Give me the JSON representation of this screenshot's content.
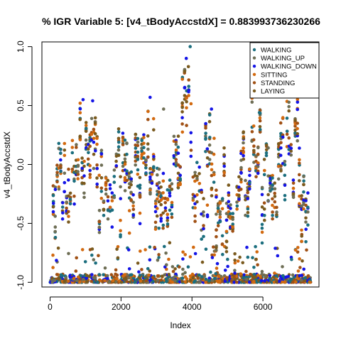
{
  "chart_data": {
    "type": "scatter",
    "title": "% IGR Variable 5: [v4_tBodyAccstdX] = 0.883993736230266",
    "xlabel": "Index",
    "ylabel": "v4_tBodyAccstdX",
    "xlim": [
      -230,
      7580
    ],
    "ylim": [
      -1.04,
      1.04
    ],
    "xticks": [
      0,
      2000,
      4000,
      6000
    ],
    "xtick_labels": [
      "0",
      "2000",
      "4000",
      "6000"
    ],
    "yticks": [
      -1.0,
      -0.5,
      0.0,
      0.5,
      1.0
    ],
    "ytick_labels": [
      "-1.0",
      "-0.5",
      "0.0",
      "0.5",
      "1.0"
    ],
    "grid": false,
    "legend_position": "top-right",
    "series": [
      {
        "name": "WALKING",
        "color": "#1b6e7e"
      },
      {
        "name": "WALKING_UP",
        "color": "#6e6e55"
      },
      {
        "name": "WALKING_DOWN",
        "color": "#1414e6"
      },
      {
        "name": "SITTING",
        "color": "#d2690f"
      },
      {
        "name": "STANDING",
        "color": "#a05014"
      },
      {
        "name": "LAYING",
        "color": "#7a5a1e"
      }
    ],
    "segments": [
      {
        "x": [
          60,
          330
        ],
        "low": -0.42,
        "high": 0.12
      },
      {
        "x": [
          330,
          600
        ],
        "low": -0.48,
        "high": 0.08
      },
      {
        "x": [
          600,
          820
        ],
        "low": -0.3,
        "high": 0.22
      },
      {
        "x": [
          820,
          1050
        ],
        "low": -0.12,
        "high": 0.5
      },
      {
        "x": [
          1050,
          1300
        ],
        "low": -0.28,
        "high": 0.5
      },
      {
        "x": [
          1300,
          1600
        ],
        "low": -0.38,
        "high": 0.15
      },
      {
        "x": [
          1600,
          1900
        ],
        "low": -0.48,
        "high": 0.05
      },
      {
        "x": [
          1900,
          2200
        ],
        "low": -0.5,
        "high": 0.2
      },
      {
        "x": [
          2200,
          2500
        ],
        "low": -0.42,
        "high": 0.15
      },
      {
        "x": [
          2500,
          2850
        ],
        "low": -0.28,
        "high": 0.5
      },
      {
        "x": [
          2850,
          3100
        ],
        "low": -0.58,
        "high": 0.25
      },
      {
        "x": [
          3100,
          3400
        ],
        "low": -0.42,
        "high": -0.28
      },
      {
        "x": [
          3400,
          3700
        ],
        "low": -0.35,
        "high": 0.28
      },
      {
        "x": [
          3700,
          4000
        ],
        "low": -0.15,
        "high": 0.85
      },
      {
        "x": [
          4000,
          4350
        ],
        "low": -0.45,
        "high": 0.2
      },
      {
        "x": [
          4350,
          4650
        ],
        "low": -0.2,
        "high": 0.45
      },
      {
        "x": [
          4650,
          5000
        ],
        "low": -0.58,
        "high": 0.1
      },
      {
        "x": [
          5000,
          5300
        ],
        "low": -0.75,
        "high": -0.3
      },
      {
        "x": [
          5300,
          5600
        ],
        "low": -0.72,
        "high": 0.25
      },
      {
        "x": [
          5600,
          5950
        ],
        "low": -0.48,
        "high": 0.38
      },
      {
        "x": [
          5950,
          6300
        ],
        "low": -0.42,
        "high": 0.3
      },
      {
        "x": [
          6300,
          6650
        ],
        "low": -0.35,
        "high": 0.2
      },
      {
        "x": [
          6650,
          7000
        ],
        "low": -0.3,
        "high": 0.4
      },
      {
        "x": [
          7000,
          7300
        ],
        "low": -0.5,
        "high": 0.15
      }
    ],
    "outliers": [
      {
        "x": 3950,
        "y": 1.0
      },
      {
        "x": 3840,
        "y": 0.9
      },
      {
        "x": 3900,
        "y": 0.83
      },
      {
        "x": 1200,
        "y": 0.54
      },
      {
        "x": 2820,
        "y": 0.57
      },
      {
        "x": 930,
        "y": 0.55
      },
      {
        "x": 5900,
        "y": 0.44
      },
      {
        "x": 4550,
        "y": 0.47
      },
      {
        "x": 150,
        "y": -0.62
      },
      {
        "x": 80,
        "y": -0.77
      },
      {
        "x": 5300,
        "y": -0.82
      },
      {
        "x": 3200,
        "y": 0.47
      }
    ],
    "baseline_band": {
      "x": [
        0,
        7350
      ],
      "low": -1.0,
      "high": -0.93
    },
    "n_points": 7352
  }
}
